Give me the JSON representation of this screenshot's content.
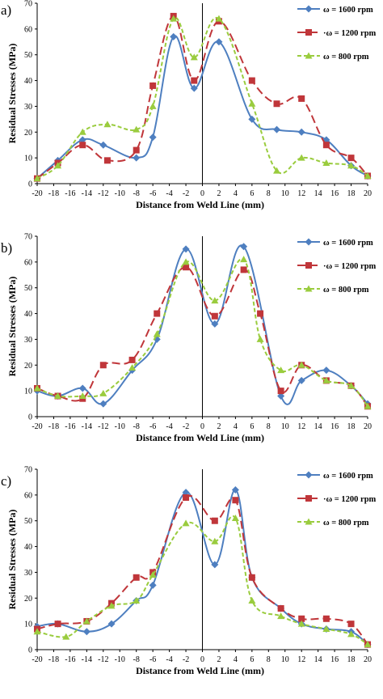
{
  "legend_labels": [
    "ω = 1600 rpm",
    "·ω = 1200 rpm",
    "ω = 800 rpm"
  ],
  "colors": {
    "s1600": "#4e7fc0",
    "s1200": "#c0363a",
    "s800": "#9acc3e"
  },
  "chart_data": [
    {
      "type": "line",
      "panel_label": "a)",
      "xlabel": "Distance from Weld Line (mm)",
      "ylabel": "Residual Stresses (MPa)",
      "xlim": [
        -20,
        20
      ],
      "ylim": [
        0,
        70
      ],
      "xticks": [
        -20,
        -18,
        -16,
        -14,
        -12,
        -10,
        -8,
        -6,
        -4,
        -2,
        0,
        2,
        4,
        6,
        8,
        10,
        12,
        14,
        16,
        18,
        20
      ],
      "yticks": [
        0,
        10,
        20,
        30,
        40,
        50,
        60,
        70
      ],
      "legend_position": "top-right",
      "series": [
        {
          "name": "ω = 1600 rpm",
          "marker": "diamond",
          "dash": "solid",
          "x": [
            -20,
            -17.5,
            -14.5,
            -12,
            -8,
            -6,
            -3.5,
            -1,
            2,
            6,
            9,
            12,
            15,
            18,
            20
          ],
          "y": [
            2,
            9,
            17,
            15,
            10,
            18,
            57,
            37,
            55,
            25,
            21,
            20,
            17,
            7,
            3
          ]
        },
        {
          "name": "·ω = 1200 rpm",
          "marker": "square",
          "dash": "long",
          "x": [
            -20,
            -17.5,
            -14.5,
            -11.5,
            -8,
            -6,
            -3.5,
            -1,
            2,
            6,
            9,
            12,
            15,
            18,
            20
          ],
          "y": [
            2,
            8,
            15,
            9,
            13,
            38,
            65,
            40,
            63,
            40,
            31,
            33,
            15,
            10,
            3
          ]
        },
        {
          "name": "ω = 800 rpm",
          "marker": "triangle",
          "dash": "short",
          "x": [
            -20,
            -17.5,
            -14.5,
            -11.5,
            -8,
            -6,
            -3.5,
            -1,
            2,
            6,
            9,
            12,
            15,
            18,
            20
          ],
          "y": [
            2,
            7,
            20,
            23,
            21,
            30,
            64,
            49,
            64,
            31,
            5,
            10,
            8,
            7,
            3
          ]
        }
      ]
    },
    {
      "type": "line",
      "panel_label": "b)",
      "xlabel": "Distance from Weld Line (mm)",
      "ylabel": "Residual Stresses (MPa)",
      "xlim": [
        -20,
        20
      ],
      "ylim": [
        0,
        70
      ],
      "xticks": [
        -20,
        -18,
        -16,
        -14,
        -12,
        -10,
        -8,
        -6,
        -4,
        -2,
        0,
        2,
        4,
        6,
        8,
        10,
        12,
        14,
        16,
        18,
        20
      ],
      "yticks": [
        0,
        10,
        20,
        30,
        40,
        50,
        60,
        70
      ],
      "legend_position": "top-right",
      "series": [
        {
          "name": "ω = 1600 rpm",
          "marker": "diamond",
          "dash": "solid",
          "x": [
            -20,
            -17.5,
            -14.5,
            -12,
            -8.5,
            -5.5,
            -2,
            1.5,
            5,
            9.5,
            12,
            15,
            18,
            20
          ],
          "y": [
            10,
            8,
            11,
            5,
            18,
            30,
            65,
            36,
            66,
            8,
            14,
            18,
            12,
            5
          ]
        },
        {
          "name": "·ω = 1200 rpm",
          "marker": "square",
          "dash": "long",
          "x": [
            -20,
            -17.5,
            -14.5,
            -12,
            -8.5,
            -5.5,
            -2,
            1.5,
            5,
            7,
            9.5,
            12,
            15,
            18,
            20
          ],
          "y": [
            11,
            8,
            7,
            20,
            22,
            40,
            58,
            39,
            57,
            40,
            10,
            20,
            14,
            12,
            4
          ]
        },
        {
          "name": "ω = 800 rpm",
          "marker": "triangle",
          "dash": "short",
          "x": [
            -20,
            -17.5,
            -14.5,
            -12,
            -8.5,
            -5.5,
            -2,
            1.5,
            5,
            7,
            9.5,
            12,
            15,
            18,
            20
          ],
          "y": [
            11,
            8,
            8,
            9,
            19,
            32,
            60,
            45,
            61,
            30,
            18,
            20,
            14,
            12,
            4
          ]
        }
      ]
    },
    {
      "type": "line",
      "panel_label": "c)",
      "xlabel": "Distance from Weld Line (mm)",
      "ylabel": "Residual Stresses (MPa)",
      "xlim": [
        -20,
        20
      ],
      "ylim": [
        0,
        70
      ],
      "xticks": [
        -20,
        -18,
        -16,
        -14,
        -12,
        -10,
        -8,
        -6,
        -4,
        -2,
        0,
        2,
        4,
        6,
        8,
        10,
        12,
        14,
        16,
        18,
        20
      ],
      "yticks": [
        0,
        10,
        20,
        30,
        40,
        50,
        60,
        70
      ],
      "legend_position": "top-right",
      "series": [
        {
          "name": "ω = 1600 rpm",
          "marker": "diamond",
          "dash": "solid",
          "x": [
            -20,
            -17.5,
            -14,
            -11,
            -8,
            -6,
            -2,
            1.5,
            4,
            6,
            9.5,
            12,
            15,
            18,
            20
          ],
          "y": [
            9,
            10,
            7,
            10,
            19,
            25,
            61,
            33,
            62,
            28,
            16,
            10,
            8,
            7,
            2
          ]
        },
        {
          "name": "·ω = 1200 rpm",
          "marker": "square",
          "dash": "long",
          "x": [
            -20,
            -17.5,
            -14,
            -11,
            -8,
            -6,
            -2,
            1.5,
            4,
            6,
            9.5,
            12,
            15,
            18,
            20
          ],
          "y": [
            8,
            10,
            11,
            18,
            28,
            30,
            59,
            50,
            58,
            28,
            16,
            12,
            12,
            10,
            2
          ]
        },
        {
          "name": "ω = 800 rpm",
          "marker": "triangle",
          "dash": "short",
          "x": [
            -20,
            -16.5,
            -14,
            -11,
            -8,
            -6,
            -2,
            1.5,
            4,
            6,
            9.5,
            12,
            15,
            18,
            20
          ],
          "y": [
            7,
            5,
            11,
            17,
            19,
            29,
            49,
            42,
            51,
            19,
            13,
            10,
            8,
            6,
            2
          ]
        }
      ]
    }
  ]
}
